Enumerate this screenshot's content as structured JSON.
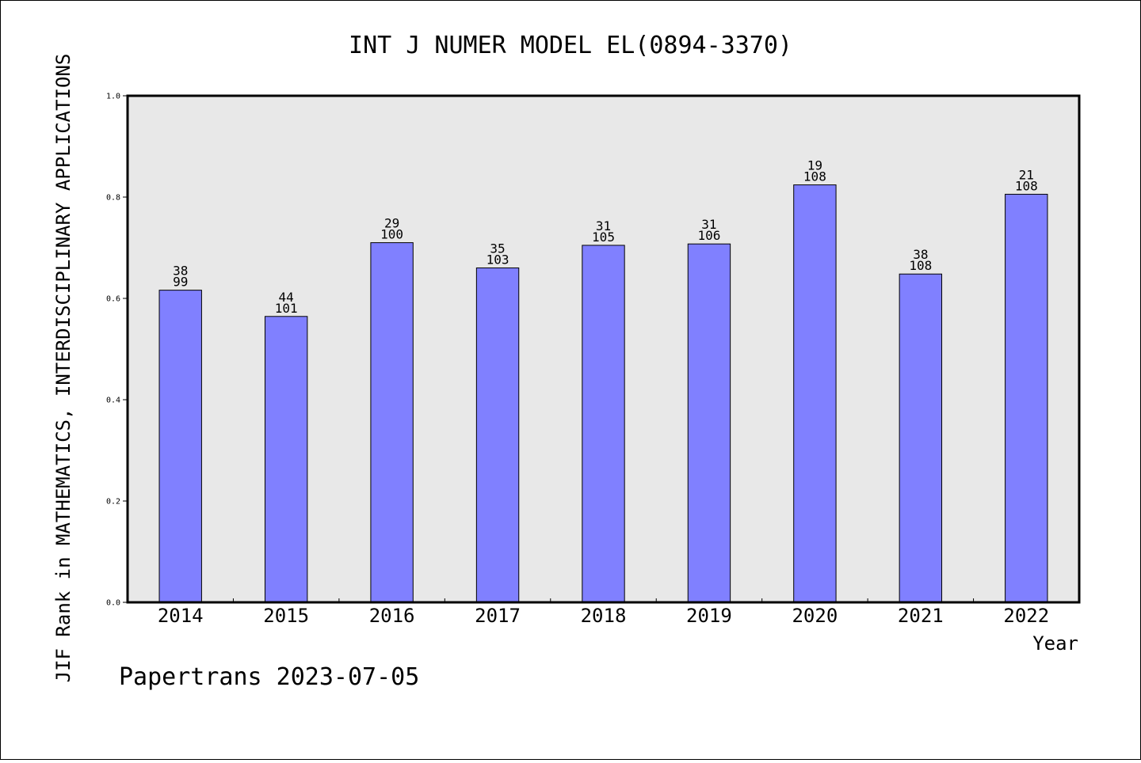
{
  "chart_data": {
    "type": "bar",
    "title": "INT J NUMER MODEL EL(0894-3370)",
    "ylabel": "JIF Rank in MATHEMATICS,  INTERDISCIPLINARY APPLICATIONS",
    "xlabel": "Year",
    "ylim": [
      0,
      1.0
    ],
    "yticks": [
      "0.0",
      "0.2",
      "0.4",
      "0.6",
      "0.8",
      "1.0"
    ],
    "grid": false,
    "bar_color": "#8080ff",
    "plot_background": "#e8e8e8",
    "categories": [
      "2014",
      "2015",
      "2016",
      "2017",
      "2018",
      "2019",
      "2020",
      "2021",
      "2022"
    ],
    "values": [
      0.6162,
      0.5644,
      0.71,
      0.6602,
      0.7048,
      0.7075,
      0.8241,
      0.6481,
      0.8056
    ],
    "ranks": [
      "38",
      "44",
      "29",
      "35",
      "31",
      "31",
      "19",
      "38",
      "21"
    ],
    "totals": [
      "99",
      "101",
      "100",
      "103",
      "105",
      "106",
      "108",
      "108",
      "108"
    ]
  },
  "footer": {
    "credit": "Papertrans 2023-07-05"
  }
}
